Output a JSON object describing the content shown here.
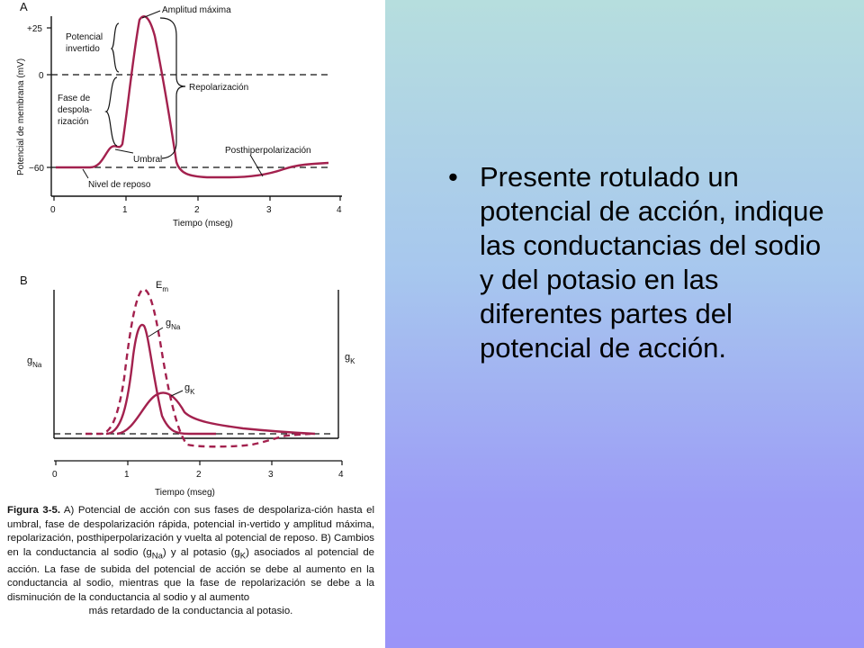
{
  "panel_a": {
    "letter": "A",
    "ylabel": "Potencial de membrana (mV)",
    "y_ticks": [
      "+25",
      "0",
      "−60"
    ],
    "x_ticks": [
      "0",
      "1",
      "2",
      "3",
      "4"
    ],
    "xlabel": "Tiempo (mseg)",
    "labels": {
      "amplitud": "Amplitud máxima",
      "invertido_1": "Potencial",
      "invertido_2": "invertido",
      "fase_1": "Fase de",
      "fase_2": "despola-",
      "fase_3": "rización",
      "repolarizacion": "Repolarización",
      "posthiper": "Posthiperpolarización",
      "umbral": "Umbral",
      "reposo": "Nivel de reposo"
    }
  },
  "panel_b": {
    "letter": "B",
    "em": "E",
    "em_sub": "m",
    "gna": "g",
    "gna_sub": "Na",
    "gk": "g",
    "gk_sub": "K",
    "left_axis": "g",
    "left_axis_sub": "Na",
    "right_axis": "g",
    "right_axis_sub": "K",
    "x_ticks": [
      "0",
      "1",
      "2",
      "3",
      "4"
    ],
    "xlabel": "Tiempo (mseg)"
  },
  "caption": {
    "bold": "Figura 3-5.",
    "p1": " A) Potencial de acción con sus fases de despolariza-ción hasta el umbral, fase de despolarización rápida, potencial in-vertido y amplitud máxima, repolarización, posthiperpolarización y vuelta al potencial de reposo. B) Cambios en la conductancia al sodio (g",
    "sub1": "Na",
    "p2": ") y al potasio (g",
    "sub2": "K",
    "p3": ") asociados al potencial de acción. La fase de subida del potencial de acción se debe al aumento en la conductancia al sodio, mientras que la fase de repolarización se debe a la disminución de la conductancia al sodio y al aumento",
    "last": "más retardado de la conductancia al potasio."
  },
  "bullet": {
    "symbol": "•",
    "text": "Presente rotulado un potencial de acción, indique las conductancias del sodio y del potasio en las diferentes partes del potencial de acción."
  },
  "colors": {
    "curve": "#a3214e",
    "axis": "#111111"
  }
}
